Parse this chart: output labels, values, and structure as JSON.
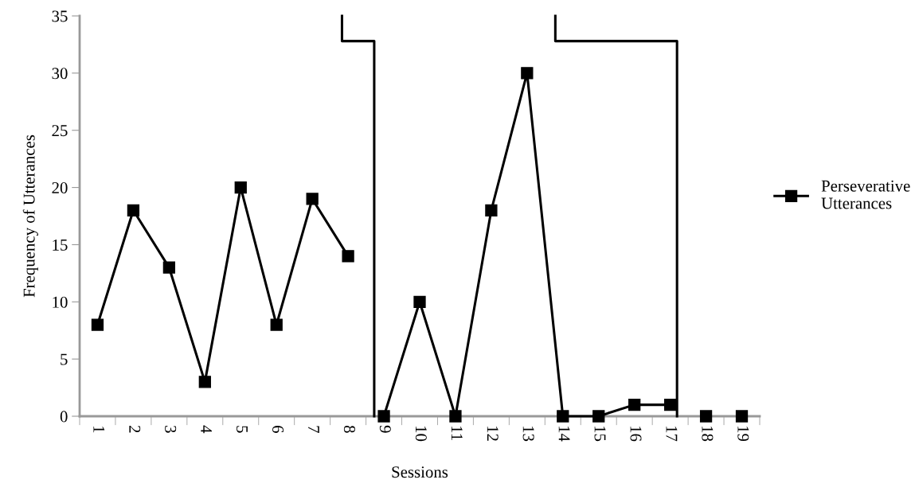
{
  "chart_data": {
    "type": "line",
    "xlabel": "Sessions",
    "ylabel": "Frequency of Utterances",
    "series": [
      {
        "name": "Perseverative Utterances",
        "color": "#000000",
        "marker": "square",
        "x": [
          1,
          2,
          3,
          4,
          5,
          6,
          7,
          8
        ],
        "values": [
          8,
          18,
          13,
          3,
          20,
          8,
          19,
          14
        ]
      },
      {
        "color": "#000000",
        "marker": "square",
        "x": [
          9,
          10,
          11,
          12,
          13,
          14,
          15,
          16,
          17
        ],
        "values": [
          0,
          10,
          0,
          18,
          30,
          0,
          0,
          1,
          1
        ]
      },
      {
        "type": "scatter",
        "color": "#000000",
        "marker": "square",
        "x": [
          18,
          19
        ],
        "values": [
          0,
          0
        ]
      },
      {
        "color": "#000000",
        "marker": "none",
        "x": [
          7.83,
          7.83,
          8.73,
          8.73
        ],
        "values": [
          35,
          32.8,
          32.8,
          0
        ]
      },
      {
        "color": "#000000",
        "marker": "none",
        "x": [
          13.79,
          13.79,
          17.19,
          17.19
        ],
        "values": [
          35,
          32.8,
          32.8,
          0
        ]
      }
    ],
    "xlim": [
      0.5,
      19.5
    ],
    "xticks": [
      {
        "value": 0.5,
        "label": null
      },
      1,
      {
        "value": 1.5,
        "label": null
      },
      2,
      {
        "value": 2.5,
        "label": null
      },
      3,
      {
        "value": 3.5,
        "label": null
      },
      4,
      {
        "value": 4.5,
        "label": null
      },
      5,
      {
        "value": 5.5,
        "label": null
      },
      6,
      {
        "value": 6.5,
        "label": null
      },
      7,
      {
        "value": 7.5,
        "label": null
      },
      8,
      {
        "value": 8.5,
        "label": null
      },
      9,
      {
        "value": 9.5,
        "label": null
      },
      10,
      {
        "value": 10.5,
        "label": null
      },
      11,
      {
        "value": 11.5,
        "label": null
      },
      12,
      {
        "value": 12.5,
        "label": null
      },
      13,
      {
        "value": 13.5,
        "label": null
      },
      14,
      {
        "value": 14.5,
        "label": null
      },
      15,
      {
        "value": 15.5,
        "label": null
      },
      16,
      {
        "value": 16.5,
        "label": null
      },
      17,
      {
        "value": 17.5,
        "label": null
      },
      18,
      {
        "value": 18.5,
        "label": null
      },
      19,
      {
        "value": 19.5,
        "label": null
      }
    ],
    "ylim": [
      0,
      35
    ],
    "yticks": [
      0,
      5,
      10,
      15,
      20,
      25,
      30,
      35
    ],
    "grid": false,
    "legend": "right"
  }
}
